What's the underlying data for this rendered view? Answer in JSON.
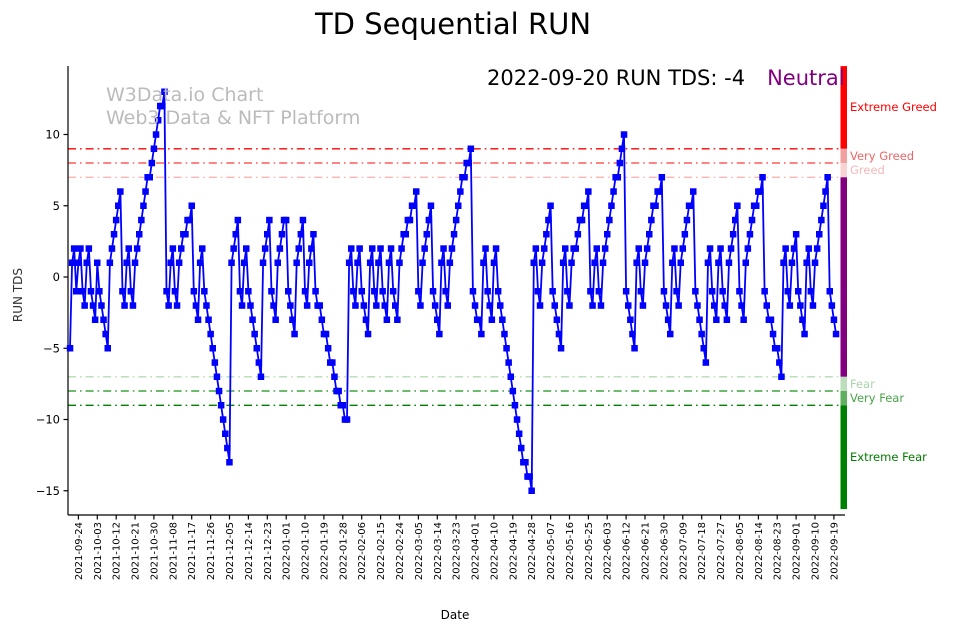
{
  "title": "TD Sequential RUN",
  "annotation": {
    "text": "2022-09-20 RUN TDS: -4",
    "status": "Neutral",
    "status_color": "#800080"
  },
  "watermark": {
    "line1": "W3Data.io Chart",
    "line2": "Web3 Data & NFT Platform"
  },
  "axes": {
    "ylabel": "RUN TDS",
    "xlabel": "Date",
    "yticks": [
      10,
      5,
      0,
      -5,
      -10,
      -15
    ],
    "ytick_labels": [
      "10",
      "5",
      "0",
      "−5",
      "−10",
      "−15"
    ],
    "xtick_labels": [
      "2021-09-24",
      "2021-10-03",
      "2021-10-12",
      "2021-10-21",
      "2021-10-30",
      "2021-11-08",
      "2021-11-17",
      "2021-11-26",
      "2021-12-05",
      "2021-12-14",
      "2021-12-23",
      "2022-01-01",
      "2022-01-10",
      "2022-01-19",
      "2022-01-28",
      "2022-02-06",
      "2022-02-15",
      "2022-02-24",
      "2022-03-05",
      "2022-03-14",
      "2022-03-23",
      "2022-04-01",
      "2022-04-10",
      "2022-04-19",
      "2022-04-28",
      "2022-05-07",
      "2022-05-16",
      "2022-05-25",
      "2022-06-03",
      "2022-06-12",
      "2022-06-21",
      "2022-06-30",
      "2022-07-09",
      "2022-07-18",
      "2022-07-27",
      "2022-08-05",
      "2022-08-14",
      "2022-08-23",
      "2022-09-01",
      "2022-09-10",
      "2022-09-19"
    ]
  },
  "chart_data": {
    "type": "line",
    "series_name": "RUN TDS",
    "line_color": "#0000ff",
    "marker": "square",
    "frequency": "daily",
    "start_date": "2021-09-20",
    "end_date": "2022-09-20",
    "ylim": [
      -17,
      14.8
    ],
    "grid": false,
    "values": [
      -5,
      1,
      2,
      -1,
      1,
      2,
      -1,
      -2,
      1,
      2,
      -1,
      -2,
      -3,
      1,
      -1,
      -2,
      -3,
      -4,
      -5,
      1,
      2,
      3,
      4,
      5,
      6,
      -1,
      -2,
      1,
      2,
      -1,
      -2,
      1,
      2,
      3,
      4,
      5,
      6,
      7,
      7,
      8,
      9,
      10,
      11,
      12,
      12,
      13,
      -1,
      -2,
      1,
      2,
      -1,
      -2,
      1,
      2,
      3,
      3,
      4,
      4,
      5,
      -1,
      -2,
      -3,
      1,
      2,
      -1,
      -2,
      -3,
      -4,
      -5,
      -6,
      -7,
      -8,
      -9,
      -10,
      -11,
      -12,
      -13,
      1,
      2,
      3,
      4,
      -1,
      -2,
      1,
      2,
      -1,
      -2,
      -3,
      -4,
      -5,
      -6,
      -7,
      1,
      2,
      3,
      4,
      -1,
      -2,
      -3,
      1,
      2,
      3,
      4,
      4,
      -1,
      -2,
      -3,
      -4,
      1,
      2,
      3,
      4,
      -1,
      -2,
      1,
      2,
      3,
      -1,
      -2,
      -2,
      -3,
      -4,
      -4,
      -5,
      -6,
      -6,
      -7,
      -8,
      -8,
      -9,
      -9,
      -10,
      -10,
      1,
      2,
      -1,
      -2,
      1,
      2,
      -1,
      -2,
      -3,
      -4,
      1,
      2,
      -1,
      -2,
      1,
      2,
      -1,
      -2,
      -3,
      1,
      2,
      -1,
      -2,
      -3,
      1,
      2,
      3,
      3,
      4,
      4,
      5,
      5,
      6,
      -1,
      -2,
      1,
      2,
      3,
      4,
      5,
      -1,
      -2,
      -3,
      -4,
      1,
      2,
      -1,
      -2,
      1,
      2,
      3,
      4,
      5,
      6,
      7,
      7,
      8,
      8,
      9,
      -1,
      -2,
      -3,
      -3,
      -4,
      1,
      2,
      -1,
      -2,
      -3,
      1,
      2,
      -1,
      -2,
      -3,
      -4,
      -5,
      -6,
      -7,
      -8,
      -9,
      -10,
      -11,
      -12,
      -13,
      -13,
      -14,
      -14,
      -15,
      1,
      2,
      -1,
      -2,
      1,
      2,
      3,
      4,
      5,
      -1,
      -2,
      -3,
      -4,
      -5,
      1,
      2,
      -1,
      -2,
      1,
      2,
      2,
      3,
      4,
      4,
      5,
      5,
      6,
      -1,
      -2,
      1,
      2,
      -1,
      -2,
      1,
      2,
      3,
      4,
      5,
      6,
      7,
      7,
      8,
      9,
      10,
      -1,
      -2,
      -3,
      -4,
      -5,
      1,
      2,
      -1,
      -2,
      1,
      2,
      3,
      4,
      5,
      5,
      6,
      6,
      7,
      -1,
      -2,
      -3,
      -4,
      1,
      2,
      -1,
      -2,
      1,
      2,
      3,
      4,
      5,
      5,
      6,
      -1,
      -2,
      -3,
      -4,
      -5,
      -6,
      1,
      2,
      -1,
      -2,
      -3,
      1,
      2,
      -1,
      -2,
      -3,
      1,
      2,
      3,
      4,
      5,
      -1,
      -2,
      -3,
      1,
      2,
      3,
      4,
      5,
      5,
      6,
      6,
      7,
      -1,
      -2,
      -3,
      -3,
      -4,
      -5,
      -5,
      -6,
      -7,
      1,
      2,
      -1,
      -2,
      1,
      2,
      3,
      -1,
      -2,
      -3,
      -4,
      1,
      2,
      -1,
      -2,
      1,
      2,
      3,
      4,
      5,
      6,
      7,
      -1,
      -2,
      -3,
      -4
    ],
    "thresholds": [
      {
        "value": 9,
        "color": "#ff0000"
      },
      {
        "value": 8,
        "color": "#ff5a5a"
      },
      {
        "value": 7,
        "color": "#ffb3b3"
      },
      {
        "value": -7,
        "color": "#b4dcb4"
      },
      {
        "value": -8,
        "color": "#3da63d"
      },
      {
        "value": -9,
        "color": "#007f00"
      }
    ],
    "zones": [
      {
        "label": "Extreme Greed",
        "from": 9,
        "to": 14.8,
        "color": "#ff0000",
        "label_color": "#ff0000",
        "show_label": true
      },
      {
        "label": "Very Greed",
        "from": 8,
        "to": 9,
        "color": "#f3a0a0",
        "label_color": "#ed6565",
        "show_label": true
      },
      {
        "label": "Greed",
        "from": 7,
        "to": 8,
        "color": "#f9d2d2",
        "label_color": "#f5b8b8",
        "show_label": true
      },
      {
        "label": "Neutral",
        "from": -7,
        "to": 7,
        "color": "#800080",
        "label_color": "#800080",
        "show_label": false
      },
      {
        "label": "Fear",
        "from": -8,
        "to": -7,
        "color": "#bcdebc",
        "label_color": "#abd5ab",
        "show_label": true
      },
      {
        "label": "Very Fear",
        "from": -9,
        "to": -8,
        "color": "#5fb05f",
        "label_color": "#47a347",
        "show_label": true
      },
      {
        "label": "Extreme Fear",
        "from": -17,
        "to": -9,
        "color": "#008000",
        "label_color": "#007d00",
        "show_label": true
      }
    ]
  }
}
